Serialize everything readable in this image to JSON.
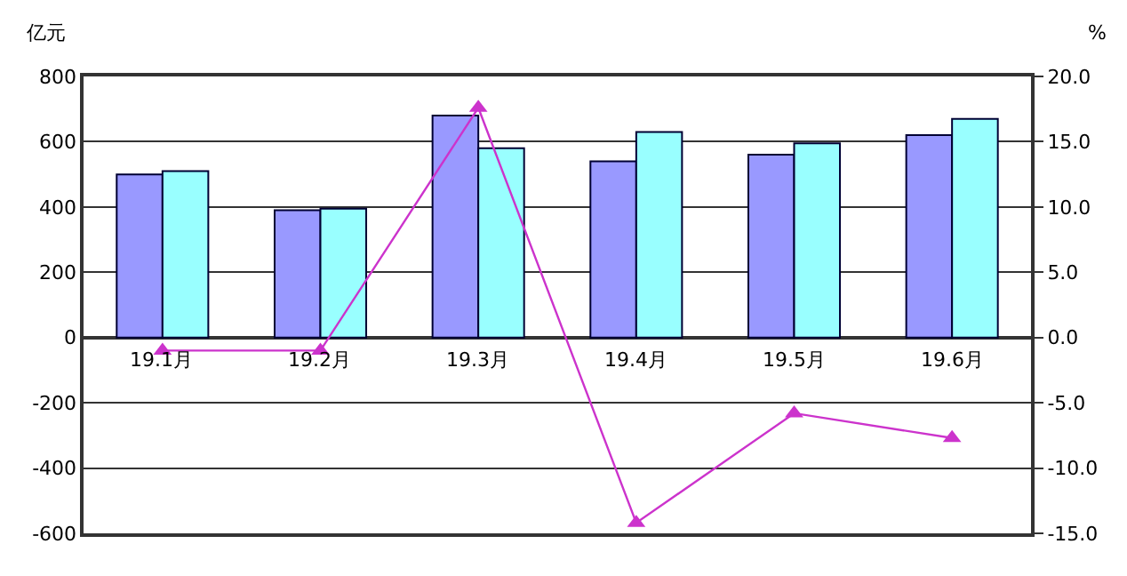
{
  "chart_data": {
    "type": "bar",
    "ylabel": "亿元",
    "y2label": "%",
    "categories": [
      "19.1月",
      "19.2月",
      "19.3月",
      "19.4月",
      "19.5月",
      "19.6月"
    ],
    "series": [
      {
        "color": "#9999ff",
        "values": [
          500,
          390,
          680,
          540,
          560,
          620
        ]
      },
      {
        "color": "#99ffff",
        "values": [
          510,
          395,
          580,
          630,
          595,
          670
        ]
      },
      {
        "type": "line",
        "axis": "y2",
        "color": "#cc33cc",
        "marker": "triangle",
        "values": [
          -1.0,
          -1.0,
          17.6,
          -14.2,
          -5.8,
          -7.7
        ]
      }
    ],
    "ylim": [
      -600,
      800
    ],
    "yticks": [
      -600,
      -400,
      -200,
      0,
      200,
      400,
      600,
      800
    ],
    "y2lim": [
      -15,
      20
    ],
    "y2ticks": [
      {
        "value": -15,
        "label": "-15.0"
      },
      {
        "value": -10,
        "label": "-10.0"
      },
      {
        "value": -5,
        "label": "-5.0"
      },
      {
        "value": 0,
        "label": "0.0"
      },
      {
        "value": 5,
        "label": "5.0"
      },
      {
        "value": 10,
        "label": "10.0"
      },
      {
        "value": 15,
        "label": "15.0"
      },
      {
        "value": 20,
        "label": "20.0"
      }
    ],
    "grid": "y"
  }
}
